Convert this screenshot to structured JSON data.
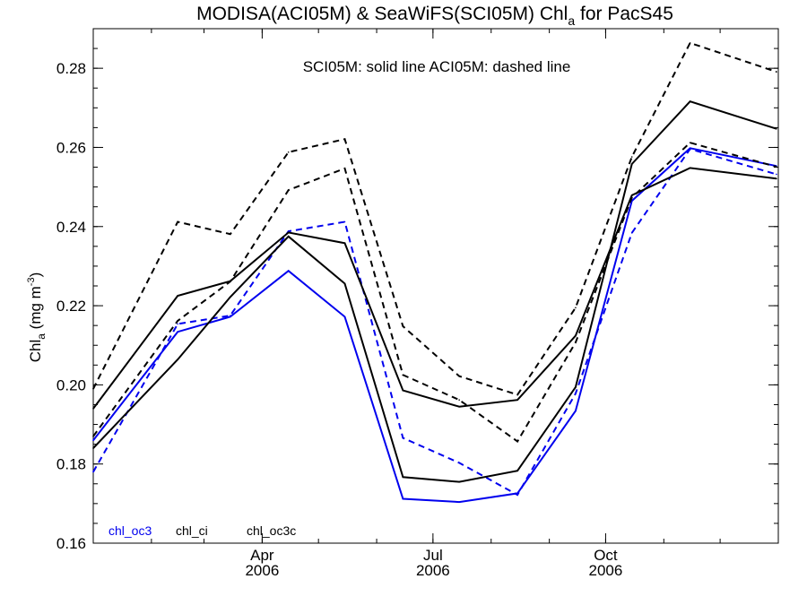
{
  "chart_data": {
    "type": "line",
    "title": {
      "prefix": "MODISA(ACI05M) & SeaWiFS(SCI05M)  Chl",
      "subscript": "a",
      "suffix": " for PacS45"
    },
    "annotation": "SCI05M: solid line   ACI05M: dashed line",
    "ylabel": {
      "prefix": "Chl",
      "subscript": "a",
      "middle": " (mg m",
      "superscript": "-3",
      "suffix": ")"
    },
    "ylim": [
      0.16,
      0.29
    ],
    "yticks": [
      {
        "value": 0.16,
        "label": "0.16"
      },
      {
        "value": 0.18,
        "label": "0.18"
      },
      {
        "value": 0.2,
        "label": "0.20"
      },
      {
        "value": 0.22,
        "label": "0.22"
      },
      {
        "value": 0.24,
        "label": "0.24"
      },
      {
        "value": 0.26,
        "label": "0.26"
      },
      {
        "value": 0.28,
        "label": "0.28"
      }
    ],
    "xlim": [
      "2006-01-01",
      "2007-01-01"
    ],
    "xticks": [
      {
        "value": "2006-04-01",
        "label": "Apr",
        "year": "2006"
      },
      {
        "value": "2006-07-01",
        "label": "Jul",
        "year": "2006"
      },
      {
        "value": "2006-10-01",
        "label": "Oct",
        "year": "2006"
      }
    ],
    "x": [
      "2006-01-01",
      "2006-02-15",
      "2006-03-15",
      "2006-04-15",
      "2006-05-15",
      "2006-06-15",
      "2006-07-15",
      "2006-08-15",
      "2006-09-15",
      "2006-10-15",
      "2006-11-15",
      "2006-12-31"
    ],
    "series": [
      {
        "name": "chl_oc3",
        "sensor": "SCI05M",
        "style": "solid",
        "color": "#0000ee",
        "values": [
          0.186,
          0.2134,
          0.2172,
          0.2288,
          0.2172,
          0.1712,
          0.1704,
          0.1726,
          0.1934,
          0.2465,
          0.2598,
          0.2553
        ]
      },
      {
        "name": "chl_oc3",
        "sensor": "ACI05M",
        "style": "dashed",
        "color": "#0000ee",
        "values": [
          0.178,
          0.2154,
          0.2175,
          0.2388,
          0.2412,
          0.1866,
          0.1803,
          0.1722,
          0.1978,
          0.2384,
          0.2596,
          0.2532
        ]
      },
      {
        "name": "chl_ci",
        "sensor": "SCI05M",
        "style": "solid",
        "color": "#000000",
        "values": [
          0.194,
          0.2225,
          0.2262,
          0.2385,
          0.2358,
          0.1986,
          0.1945,
          0.1962,
          0.2124,
          0.2479,
          0.2548,
          0.2521
        ]
      },
      {
        "name": "chl_ci",
        "sensor": "ACI05M",
        "style": "dashed",
        "color": "#000000",
        "values": [
          0.199,
          0.2412,
          0.2381,
          0.2588,
          0.2621,
          0.2148,
          0.2022,
          0.1975,
          0.2195,
          0.2576,
          0.2864,
          0.2791
        ]
      },
      {
        "name": "chl_oc3c",
        "sensor": "SCI05M",
        "style": "solid",
        "color": "#000000",
        "values": [
          0.184,
          0.2064,
          0.2222,
          0.2375,
          0.2256,
          0.1767,
          0.1755,
          0.1783,
          0.1994,
          0.2558,
          0.2716,
          0.2647
        ]
      },
      {
        "name": "chl_oc3c",
        "sensor": "ACI05M",
        "style": "dashed",
        "color": "#000000",
        "values": [
          0.187,
          0.2162,
          0.2261,
          0.2492,
          0.2547,
          0.2025,
          0.1962,
          0.1857,
          0.2107,
          0.2473,
          0.2612,
          0.2551
        ]
      }
    ],
    "legend": {
      "placement": "bottom-left",
      "entries": [
        {
          "label": "chl_oc3",
          "color": "#0000ee"
        },
        {
          "label": "chl_ci",
          "color": "#000000"
        },
        {
          "label": "chl_oc3c",
          "color": "#000000"
        }
      ]
    },
    "grid": false
  }
}
